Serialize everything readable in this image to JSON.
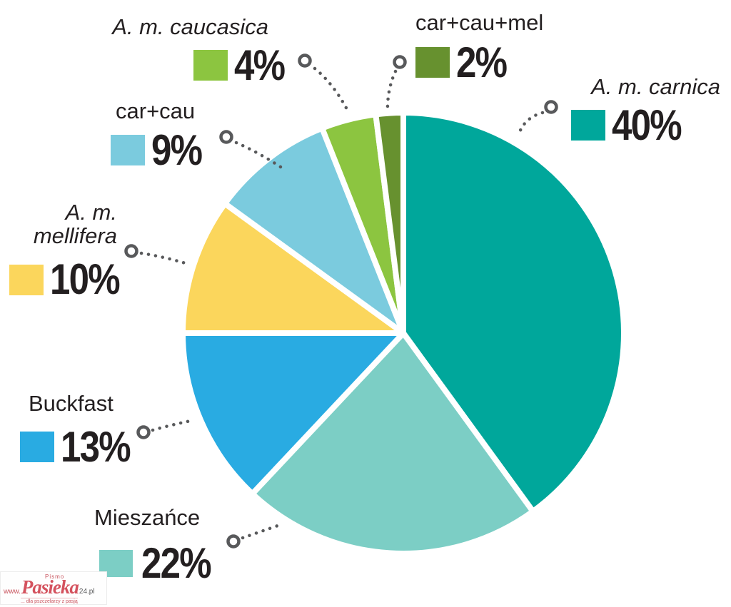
{
  "chart_data": {
    "type": "pie",
    "title": "",
    "unit": "%",
    "start_angle_deg": 0,
    "direction": "clockwise",
    "legend_position": "around",
    "slices": [
      {
        "label": "A. m. carnica",
        "value": 40,
        "pct_label": "40%",
        "color": "#00A79B",
        "italic": true
      },
      {
        "label": "Mieszańce",
        "value": 22,
        "pct_label": "22%",
        "color": "#7CCEC5",
        "italic": false
      },
      {
        "label": "Buckfast",
        "value": 13,
        "pct_label": "13%",
        "color": "#29ABE2",
        "italic": false
      },
      {
        "label": "A. m. mellifera",
        "value": 10,
        "pct_label": "10%",
        "color": "#FBD65C",
        "italic": true,
        "label_lines": [
          "A. m.",
          "mellifera"
        ]
      },
      {
        "label": "car+cau",
        "value": 9,
        "pct_label": "9%",
        "color": "#7BCBDE",
        "italic": false
      },
      {
        "label": "A. m. caucasica",
        "value": 4,
        "pct_label": "4%",
        "color": "#8CC540",
        "italic": true
      },
      {
        "label": "car+cau+mel",
        "value": 2,
        "pct_label": "2%",
        "color": "#67912F",
        "italic": false
      }
    ],
    "callout_color": "#58595B",
    "slice_gap_color": "#FFFFFF"
  },
  "watermark": {
    "top": "Pismo",
    "prefix": "www.",
    "name": "Pasieka",
    "suffix": "24.pl",
    "tagline": "... dla pszczelarzy z pasją"
  }
}
